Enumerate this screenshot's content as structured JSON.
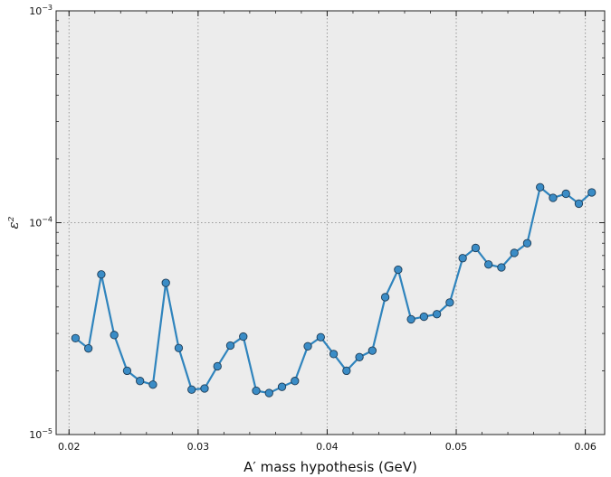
{
  "chart_data": {
    "type": "line",
    "xlabel": "A′ mass hypothesis (GeV)",
    "ylabel": "ε²",
    "xlim": [
      0.019,
      0.0615
    ],
    "ylim": [
      1e-05,
      0.001
    ],
    "yscale": "log",
    "grid": true,
    "x_ticks": [
      0.02,
      0.03,
      0.04,
      0.05,
      0.06
    ],
    "x_tick_labels": [
      "0.02",
      "0.03",
      "0.04",
      "0.05",
      "0.06"
    ],
    "y_ticks": [
      1e-05,
      0.0001,
      0.001
    ],
    "y_tick_labels": [
      {
        "base": "10",
        "exp": "−5"
      },
      {
        "base": "10",
        "exp": "−4"
      },
      {
        "base": "10",
        "exp": "−3"
      }
    ],
    "series": [
      {
        "color": "#2f84bd",
        "marker_color": "#3a8cc6",
        "x": [
          0.0205,
          0.0215,
          0.0225,
          0.0235,
          0.0245,
          0.0255,
          0.0265,
          0.0275,
          0.0285,
          0.0295,
          0.0305,
          0.0315,
          0.0325,
          0.0335,
          0.0345,
          0.0355,
          0.0365,
          0.0375,
          0.0385,
          0.0395,
          0.0405,
          0.0415,
          0.0425,
          0.0435,
          0.0445,
          0.0455,
          0.0465,
          0.0475,
          0.0485,
          0.0495,
          0.0505,
          0.0515,
          0.0525,
          0.0535,
          0.0545,
          0.0555,
          0.0565,
          0.0575,
          0.0585,
          0.0595,
          0.0605
        ],
        "y": [
          2.85e-05,
          2.55e-05,
          5.7e-05,
          2.95e-05,
          2e-05,
          1.79e-05,
          1.72e-05,
          5.2e-05,
          2.56e-05,
          1.63e-05,
          1.65e-05,
          2.1e-05,
          2.63e-05,
          2.9e-05,
          1.61e-05,
          1.57e-05,
          1.68e-05,
          1.79e-05,
          2.61e-05,
          2.88e-05,
          2.4e-05,
          2e-05,
          2.32e-05,
          2.49e-05,
          4.45e-05,
          6e-05,
          3.5e-05,
          3.6e-05,
          3.7e-05,
          4.2e-05,
          6.8e-05,
          7.6e-05,
          6.35e-05,
          6.15e-05,
          7.2e-05,
          8e-05,
          0.000147,
          0.000131,
          0.000137,
          0.000123,
          0.000139
        ]
      }
    ]
  },
  "colors": {
    "plot_background": "#ececec",
    "grid": "#9a9a9a",
    "line": "#2f84bd",
    "marker_fill": "#3a8cc6",
    "marker_edge": "#1d3c56"
  }
}
